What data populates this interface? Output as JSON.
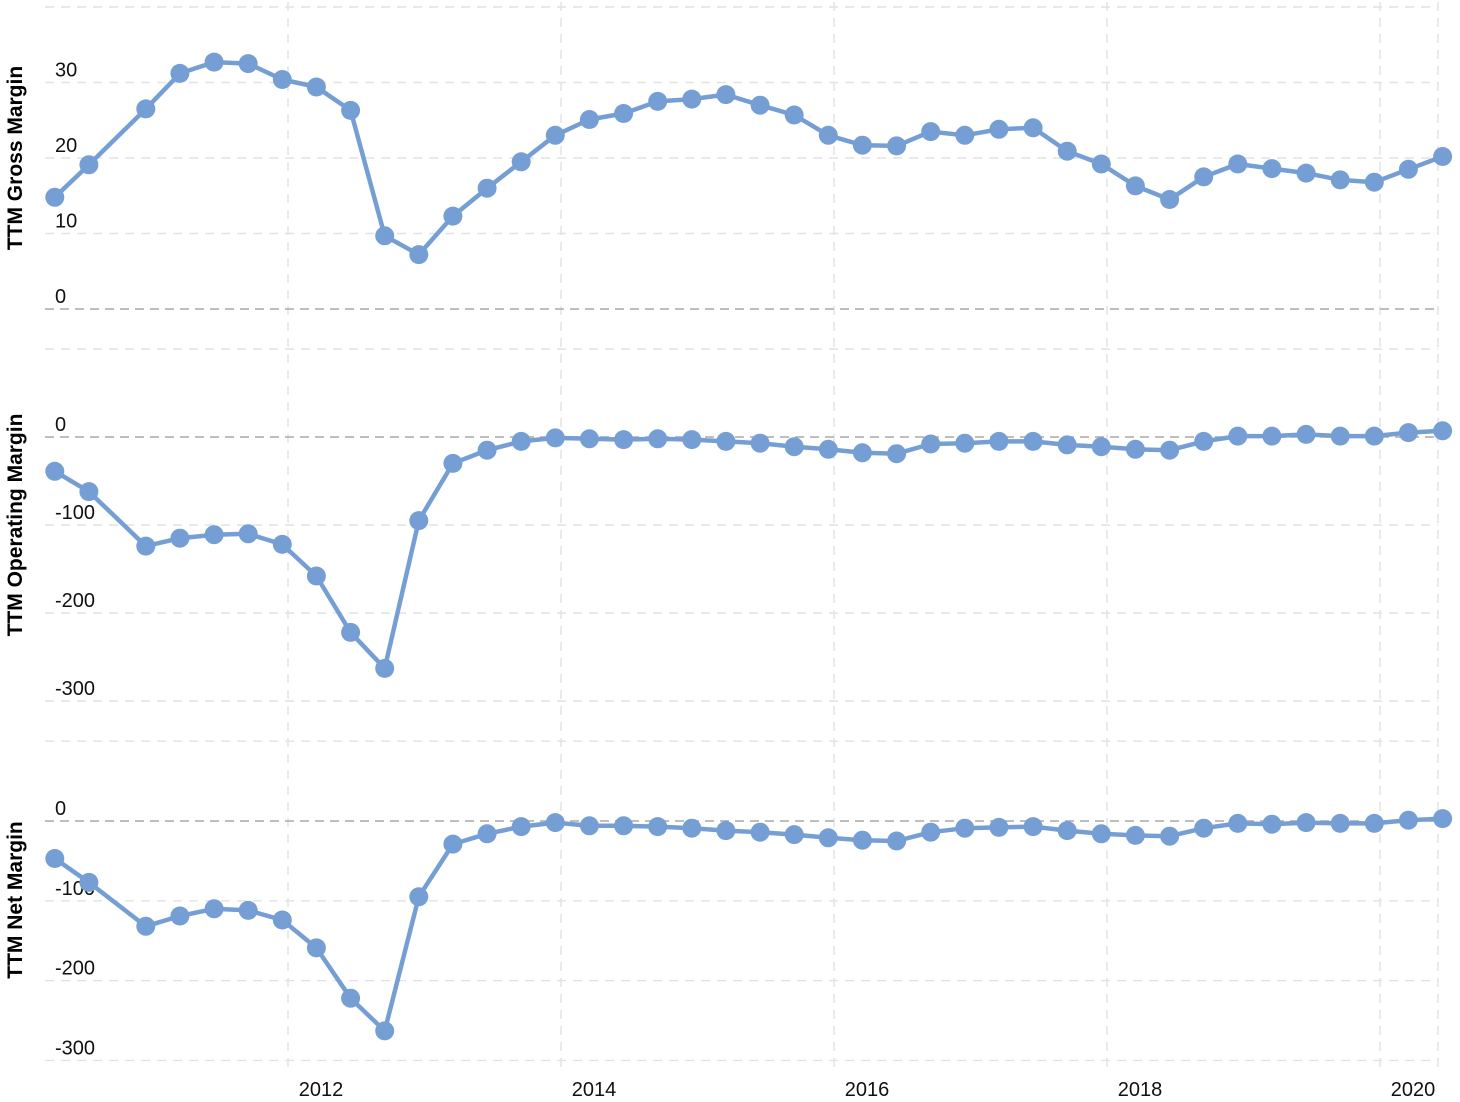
{
  "chart_data": [
    {
      "type": "line",
      "ylabel": "TTM Gross Margin",
      "yticks": [
        0,
        10,
        20,
        30
      ],
      "ylim": [
        0,
        40
      ],
      "x": [
        "2010-04",
        "2010-07",
        "2010-12",
        "2011-03",
        "2011-06",
        "2011-09",
        "2011-12",
        "2012-03",
        "2012-06",
        "2012-09",
        "2012-12",
        "2013-03",
        "2013-06",
        "2013-09",
        "2013-12",
        "2014-03",
        "2014-06",
        "2014-09",
        "2014-12",
        "2015-03",
        "2015-06",
        "2015-09",
        "2015-12",
        "2016-03",
        "2016-06",
        "2016-09",
        "2016-12",
        "2017-03",
        "2017-06",
        "2017-09",
        "2017-12",
        "2018-03",
        "2018-06",
        "2018-09",
        "2018-12",
        "2019-03",
        "2019-06",
        "2019-09",
        "2019-12",
        "2020-03",
        "2020-06"
      ],
      "series": [
        {
          "values": [
            14.8,
            19.1,
            26.5,
            31.2,
            32.7,
            32.5,
            30.4,
            29.4,
            26.3,
            9.7,
            7.2,
            12.3,
            16.0,
            19.5,
            23.0,
            25.1,
            25.9,
            27.5,
            27.8,
            28.4,
            27.0,
            25.7,
            23.0,
            21.7,
            21.6,
            23.5,
            23.0,
            23.8,
            24.0,
            20.9,
            19.2,
            16.3,
            14.5,
            17.5,
            19.2,
            18.6,
            18.0,
            17.1,
            16.8,
            18.5,
            20.2
          ]
        }
      ]
    },
    {
      "type": "line",
      "ylabel": "TTM Operating Margin",
      "yticks": [
        0,
        -100,
        -200,
        -300
      ],
      "ylim": [
        -300,
        100
      ],
      "x": [
        "2010-04",
        "2010-07",
        "2010-12",
        "2011-03",
        "2011-06",
        "2011-09",
        "2011-12",
        "2012-03",
        "2012-06",
        "2012-09",
        "2012-12",
        "2013-03",
        "2013-06",
        "2013-09",
        "2013-12",
        "2014-03",
        "2014-06",
        "2014-09",
        "2014-12",
        "2015-03",
        "2015-06",
        "2015-09",
        "2015-12",
        "2016-03",
        "2016-06",
        "2016-09",
        "2016-12",
        "2017-03",
        "2017-06",
        "2017-09",
        "2017-12",
        "2018-03",
        "2018-06",
        "2018-09",
        "2018-12",
        "2019-03",
        "2019-06",
        "2019-09",
        "2019-12",
        "2020-03",
        "2020-06"
      ],
      "series": [
        {
          "values": [
            -39,
            -62,
            -124,
            -115,
            -111,
            -110,
            -122,
            -158,
            -222,
            -263,
            -95,
            -30,
            -15,
            -5,
            -1,
            -2,
            -3,
            -2,
            -3,
            -5,
            -7,
            -11,
            -14,
            -18,
            -19,
            -8,
            -7,
            -5,
            -5,
            -9,
            -11,
            -14,
            -15,
            -5,
            1,
            1,
            3,
            1,
            1,
            5,
            7
          ]
        }
      ]
    },
    {
      "type": "line",
      "ylabel": "TTM Net Margin",
      "yticks": [
        0,
        -100,
        -200,
        -300
      ],
      "ylim": [
        -300,
        100
      ],
      "xticks": [
        "2012",
        "2014",
        "2016",
        "2018",
        "2020"
      ],
      "x": [
        "2010-04",
        "2010-07",
        "2010-12",
        "2011-03",
        "2011-06",
        "2011-09",
        "2011-12",
        "2012-03",
        "2012-06",
        "2012-09",
        "2012-12",
        "2013-03",
        "2013-06",
        "2013-09",
        "2013-12",
        "2014-03",
        "2014-06",
        "2014-09",
        "2014-12",
        "2015-03",
        "2015-06",
        "2015-09",
        "2015-12",
        "2016-03",
        "2016-06",
        "2016-09",
        "2016-12",
        "2017-03",
        "2017-06",
        "2017-09",
        "2017-12",
        "2018-03",
        "2018-06",
        "2018-09",
        "2018-12",
        "2019-03",
        "2019-06",
        "2019-09",
        "2019-12",
        "2020-03",
        "2020-06"
      ],
      "series": [
        {
          "values": [
            -47,
            -77,
            -132,
            -119,
            -110,
            -112,
            -124,
            -159,
            -222,
            -263,
            -95,
            -29,
            -16,
            -7,
            -2,
            -6,
            -6,
            -7,
            -9,
            -12,
            -14,
            -17,
            -21,
            -24,
            -25,
            -14,
            -9,
            -8,
            -7,
            -12,
            -16,
            -18,
            -19,
            -9,
            -3,
            -4,
            -2,
            -3,
            -3,
            1,
            3
          ]
        }
      ]
    }
  ],
  "style": {
    "series_color": "#759fd4",
    "grid_color": "#e2e2e2",
    "zero_line_color": "#a9a9a9"
  }
}
